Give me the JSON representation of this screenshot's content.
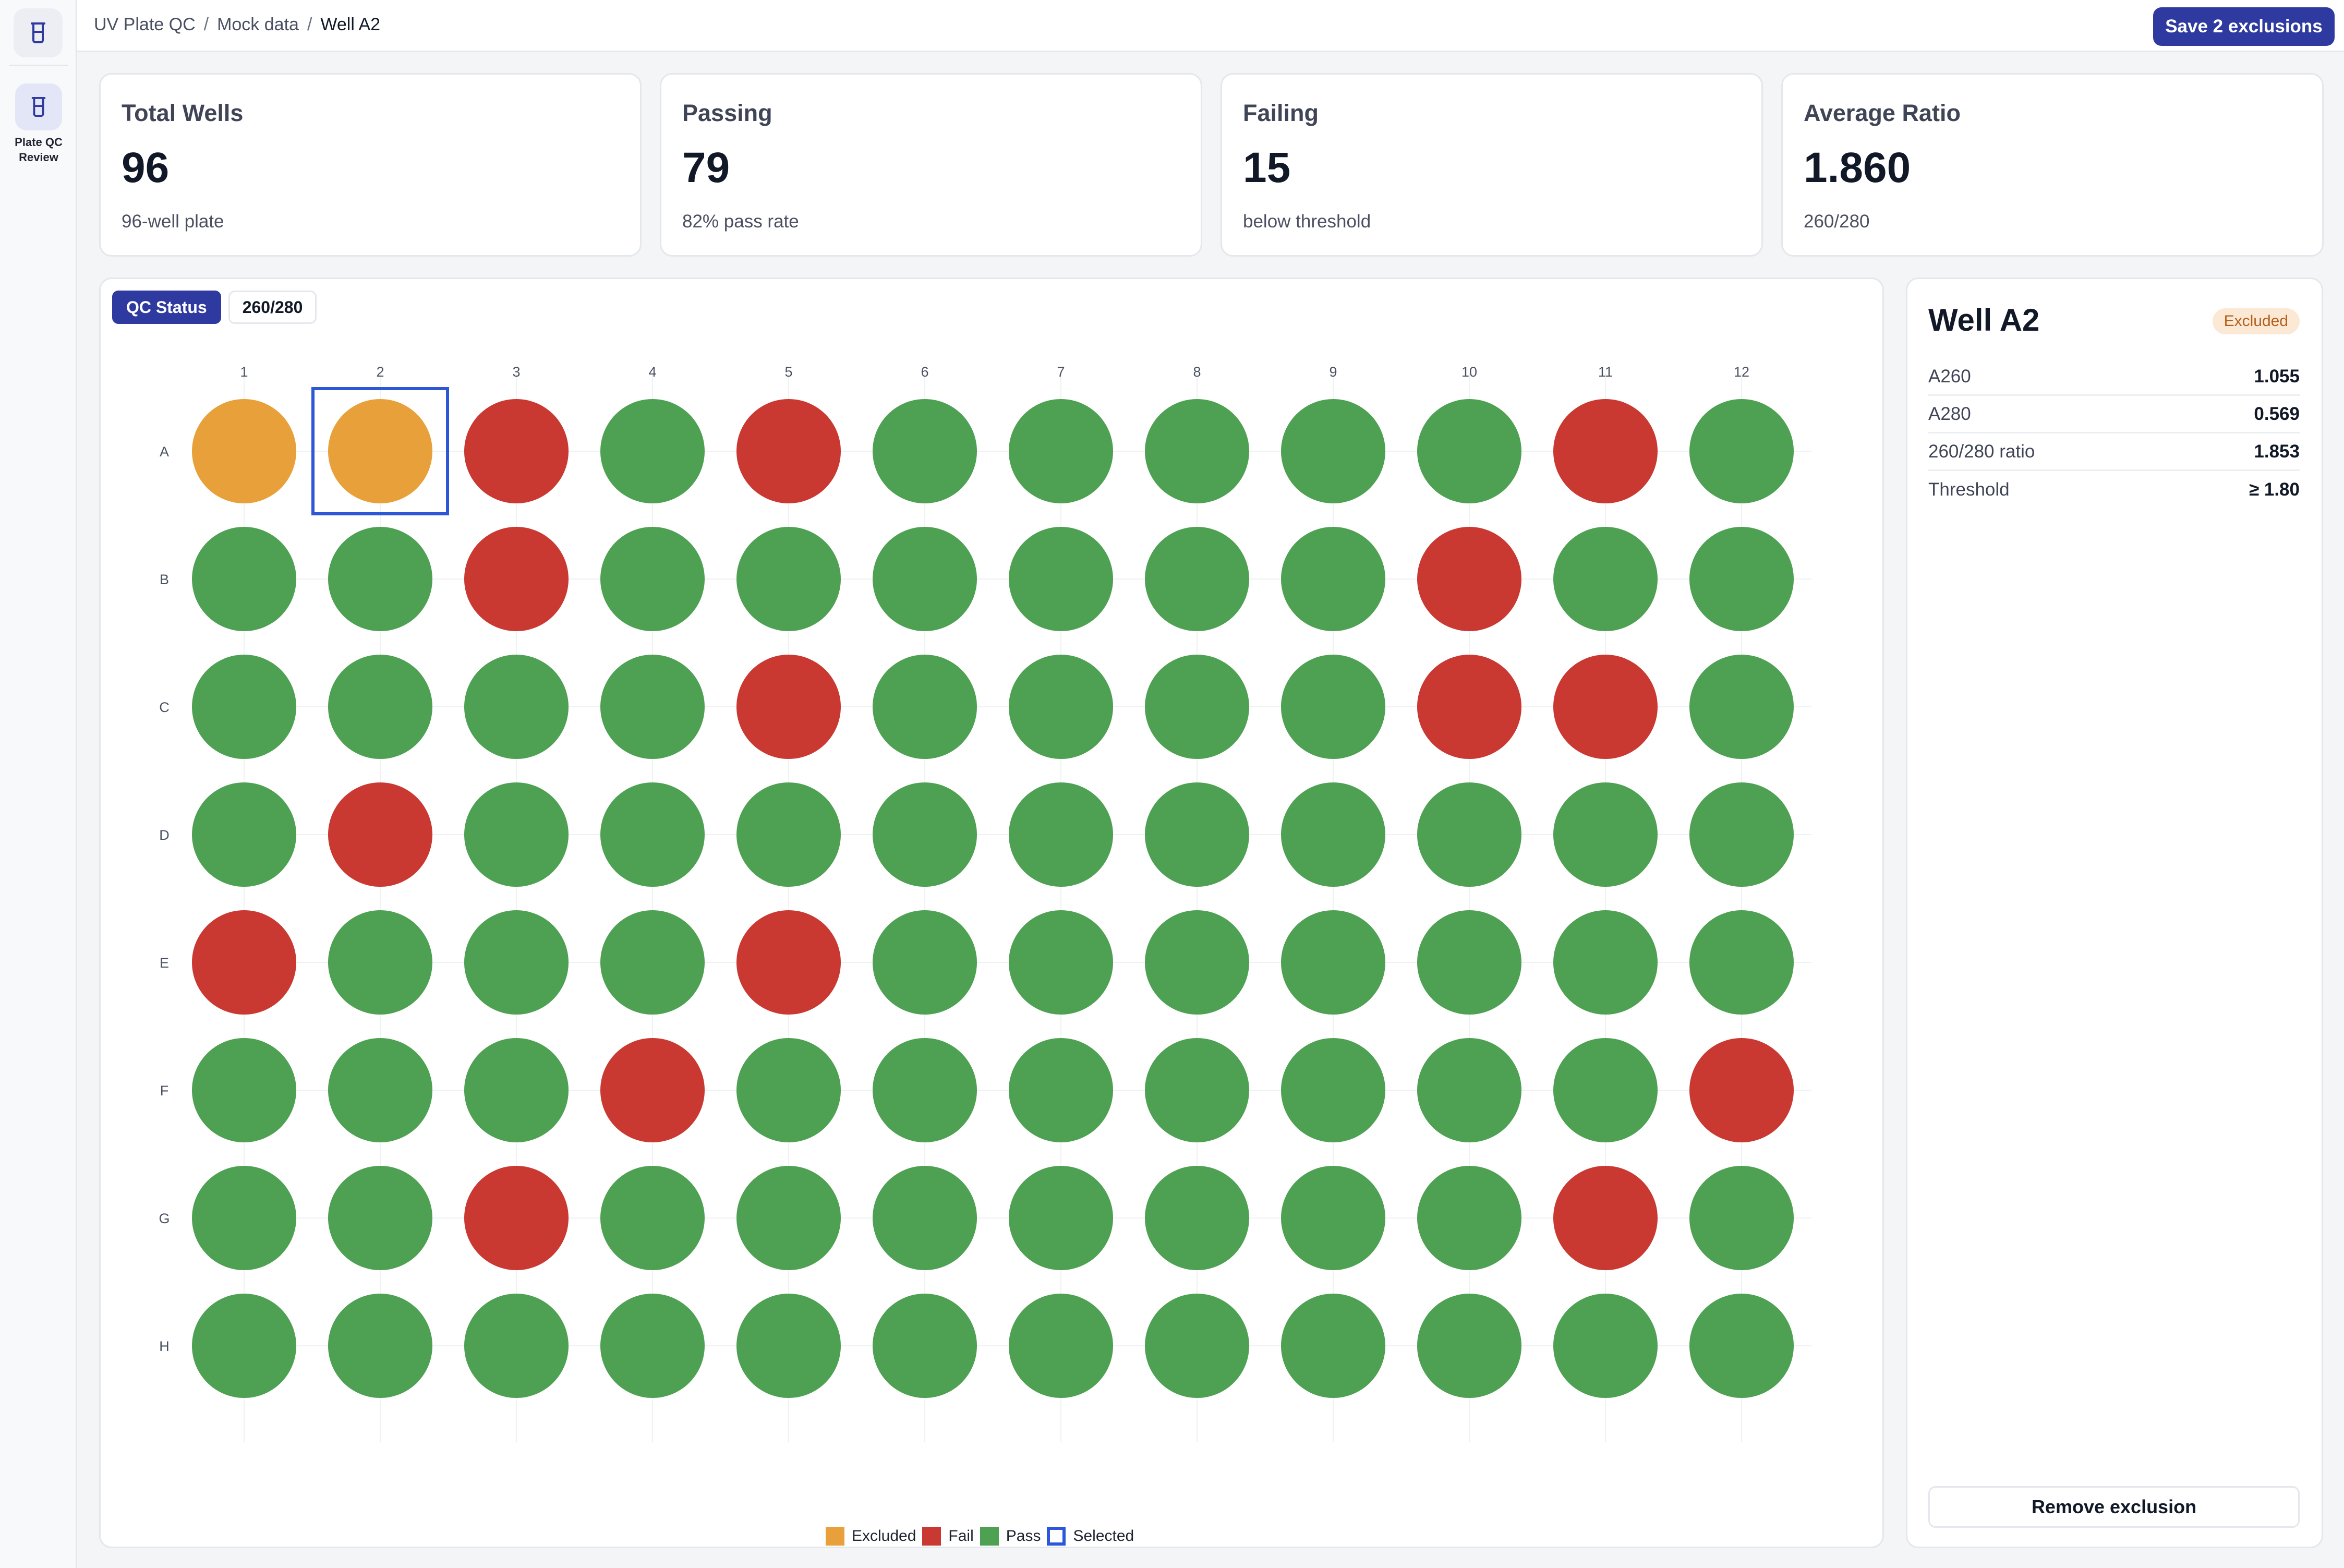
{
  "sidebar": {
    "logo_icon": "beaker-icon",
    "items": [
      {
        "label": "Plate QC Review",
        "icon": "beaker-icon",
        "active": true
      }
    ]
  },
  "header": {
    "breadcrumbs": [
      "UV Plate QC",
      "Mock data",
      "Well A2"
    ],
    "save_label": "Save 2 exclusions"
  },
  "stats": [
    {
      "title": "Total Wells",
      "value": "96",
      "subtitle": "96-well plate"
    },
    {
      "title": "Passing",
      "value": "79",
      "subtitle": "82% pass rate"
    },
    {
      "title": "Failing",
      "value": "15",
      "subtitle": "below threshold"
    },
    {
      "title": "Average Ratio",
      "value": "1.860",
      "subtitle": "260/280"
    }
  ],
  "view_toggle": {
    "options": [
      "QC Status",
      "260/280"
    ],
    "selected": "QC Status"
  },
  "plate": {
    "columns": [
      "1",
      "2",
      "3",
      "4",
      "5",
      "6",
      "7",
      "8",
      "9",
      "10",
      "11",
      "12"
    ],
    "rows": [
      "A",
      "B",
      "C",
      "D",
      "E",
      "F",
      "G",
      "H"
    ],
    "status": [
      [
        "excluded",
        "excluded",
        "fail",
        "pass",
        "fail",
        "pass",
        "pass",
        "pass",
        "pass",
        "pass",
        "fail",
        "pass"
      ],
      [
        "pass",
        "pass",
        "fail",
        "pass",
        "pass",
        "pass",
        "pass",
        "pass",
        "pass",
        "fail",
        "pass",
        "pass"
      ],
      [
        "pass",
        "pass",
        "pass",
        "pass",
        "fail",
        "pass",
        "pass",
        "pass",
        "pass",
        "fail",
        "fail",
        "pass"
      ],
      [
        "pass",
        "fail",
        "pass",
        "pass",
        "pass",
        "pass",
        "pass",
        "pass",
        "pass",
        "pass",
        "pass",
        "pass"
      ],
      [
        "fail",
        "pass",
        "pass",
        "pass",
        "fail",
        "pass",
        "pass",
        "pass",
        "pass",
        "pass",
        "pass",
        "pass"
      ],
      [
        "pass",
        "pass",
        "pass",
        "fail",
        "pass",
        "pass",
        "pass",
        "pass",
        "pass",
        "pass",
        "pass",
        "fail"
      ],
      [
        "pass",
        "pass",
        "fail",
        "pass",
        "pass",
        "pass",
        "pass",
        "pass",
        "pass",
        "pass",
        "fail",
        "pass"
      ],
      [
        "pass",
        "pass",
        "pass",
        "pass",
        "pass",
        "pass",
        "pass",
        "pass",
        "pass",
        "pass",
        "pass",
        "pass"
      ]
    ],
    "selected_well": "A2",
    "colors": {
      "excluded": "#e8a13a",
      "fail": "#ca3832",
      "pass": "#4ea153",
      "selected": "#2d57d6"
    }
  },
  "legend": {
    "items": [
      {
        "key": "excluded",
        "label": "Excluded"
      },
      {
        "key": "fail",
        "label": "Fail"
      },
      {
        "key": "pass",
        "label": "Pass"
      },
      {
        "key": "selected",
        "label": "Selected"
      }
    ]
  },
  "detail": {
    "title": "Well A2",
    "badge": "Excluded",
    "rows": [
      {
        "label": "A260",
        "value": "1.055"
      },
      {
        "label": "A280",
        "value": "0.569"
      },
      {
        "label": "260/280 ratio",
        "value": "1.853"
      },
      {
        "label": "Threshold",
        "value": "≥ 1.80"
      }
    ],
    "remove_label": "Remove exclusion"
  }
}
